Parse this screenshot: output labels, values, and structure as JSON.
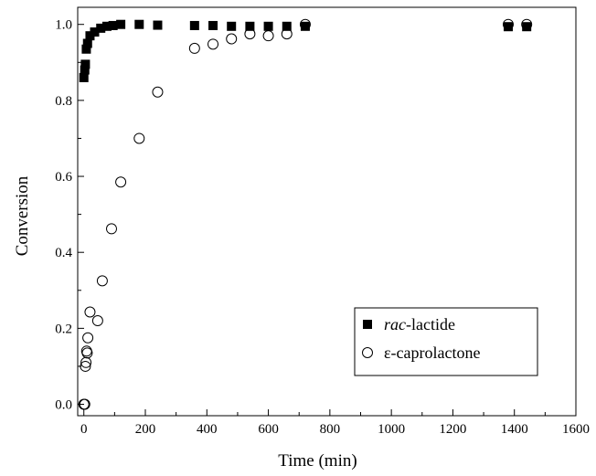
{
  "chart_data": {
    "type": "scatter",
    "xlabel": "Time (min)",
    "ylabel": "Conversion",
    "xlim": [
      -20,
      1600
    ],
    "ylim": [
      -0.03,
      1.045
    ],
    "x_ticks": [
      0,
      200,
      400,
      600,
      800,
      1000,
      1200,
      1400,
      1600
    ],
    "y_ticks": [
      0.0,
      0.2,
      0.4,
      0.6,
      0.8,
      1.0
    ],
    "y_tick_labels": [
      "0.0",
      "0.2",
      "0.4",
      "0.6",
      "0.8",
      "1.0"
    ],
    "x_minor_step": 100,
    "y_minor_step": 0.1,
    "grid": false,
    "legend_position": "bottom-right",
    "series": [
      {
        "label_prefix": "rac",
        "label_suffix": "-lactide",
        "marker": "filled-square",
        "color": "#000000",
        "points": [
          [
            0,
            0.86
          ],
          [
            3,
            0.88
          ],
          [
            5,
            0.895
          ],
          [
            8,
            0.935
          ],
          [
            12,
            0.95
          ],
          [
            20,
            0.97
          ],
          [
            35,
            0.98
          ],
          [
            55,
            0.99
          ],
          [
            75,
            0.995
          ],
          [
            95,
            0.997
          ],
          [
            120,
            1.0
          ],
          [
            180,
            1.0
          ],
          [
            240,
            0.998
          ],
          [
            360,
            0.997
          ],
          [
            420,
            0.997
          ],
          [
            480,
            0.995
          ],
          [
            540,
            0.995
          ],
          [
            600,
            0.995
          ],
          [
            660,
            0.995
          ],
          [
            720,
            0.995
          ],
          [
            1380,
            0.994
          ],
          [
            1440,
            0.994
          ]
        ]
      },
      {
        "label": "ε-caprolactone",
        "marker": "open-circle",
        "color": "#000000",
        "points": [
          [
            0,
            0.0
          ],
          [
            3,
            0.0
          ],
          [
            5,
            0.1
          ],
          [
            7,
            0.11
          ],
          [
            9,
            0.14
          ],
          [
            11,
            0.135
          ],
          [
            13,
            0.175
          ],
          [
            20,
            0.243
          ],
          [
            45,
            0.22
          ],
          [
            60,
            0.325
          ],
          [
            90,
            0.462
          ],
          [
            120,
            0.585
          ],
          [
            180,
            0.7
          ],
          [
            240,
            0.822
          ],
          [
            360,
            0.937
          ],
          [
            420,
            0.948
          ],
          [
            480,
            0.962
          ],
          [
            540,
            0.975
          ],
          [
            600,
            0.97
          ],
          [
            660,
            0.975
          ],
          [
            720,
            1.0
          ],
          [
            1380,
            1.0
          ],
          [
            1440,
            1.0
          ]
        ]
      }
    ]
  }
}
